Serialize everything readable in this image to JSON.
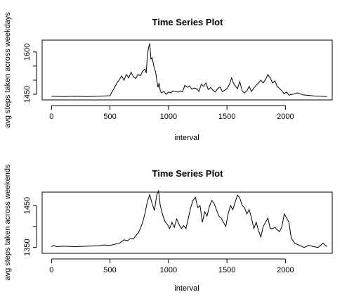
{
  "chart_data": [
    {
      "type": "line",
      "title": "Time Series Plot",
      "xlabel": "interval",
      "ylabel": "avg steps taken across weekdays",
      "xlim": [
        -80,
        2400
      ],
      "ylim": [
        1430,
        1642
      ],
      "xticks": [
        0,
        500,
        1000,
        1500,
        2000
      ],
      "yticks": [
        1450,
        1600
      ],
      "yminor": [
        1500,
        1550
      ],
      "line_color": "#000000",
      "x": [
        0,
        100,
        200,
        300,
        400,
        500,
        520,
        540,
        560,
        580,
        600,
        620,
        640,
        660,
        680,
        700,
        720,
        740,
        760,
        780,
        800,
        810,
        820,
        830,
        840,
        850,
        860,
        870,
        880,
        890,
        900,
        910,
        920,
        930,
        940,
        960,
        980,
        1000,
        1020,
        1040,
        1060,
        1080,
        1100,
        1120,
        1140,
        1160,
        1180,
        1200,
        1220,
        1240,
        1260,
        1280,
        1300,
        1320,
        1340,
        1360,
        1380,
        1400,
        1420,
        1440,
        1460,
        1480,
        1500,
        1520,
        1540,
        1555,
        1570,
        1590,
        1610,
        1630,
        1650,
        1670,
        1690,
        1710,
        1730,
        1750,
        1770,
        1790,
        1810,
        1830,
        1850,
        1870,
        1890,
        1910,
        1930,
        1950,
        1970,
        1990,
        2010,
        2030,
        2060,
        2100,
        2150,
        2200,
        2250,
        2300,
        2355
      ],
      "y": [
        1443,
        1442,
        1443,
        1442,
        1443,
        1445,
        1460,
        1475,
        1490,
        1502,
        1515,
        1500,
        1520,
        1508,
        1528,
        1512,
        1506,
        1520,
        1516,
        1532,
        1540,
        1525,
        1590,
        1615,
        1630,
        1575,
        1580,
        1560,
        1540,
        1530,
        1500,
        1475,
        1490,
        1462,
        1455,
        1460,
        1450,
        1458,
        1455,
        1462,
        1460,
        1458,
        1462,
        1458,
        1482,
        1475,
        1480,
        1468,
        1472,
        1470,
        1460,
        1485,
        1478,
        1490,
        1467,
        1474,
        1465,
        1458,
        1470,
        1476,
        1460,
        1464,
        1470,
        1484,
        1508,
        1490,
        1480,
        1470,
        1495,
        1462,
        1455,
        1462,
        1478,
        1460,
        1472,
        1482,
        1490,
        1500,
        1490,
        1503,
        1520,
        1508,
        1490,
        1497,
        1478,
        1470,
        1462,
        1452,
        1458,
        1447,
        1450,
        1455,
        1448,
        1446,
        1444,
        1443,
        1442
      ]
    },
    {
      "type": "line",
      "title": "Time Series Plot",
      "xlabel": "interval",
      "ylabel": "avg steps taken across weekends",
      "xlim": [
        -80,
        2400
      ],
      "ylim": [
        1336,
        1482
      ],
      "xticks": [
        0,
        500,
        1000,
        1500,
        2000
      ],
      "yticks": [
        1350,
        1450
      ],
      "yminor": [
        1400
      ],
      "line_color": "#000000",
      "x": [
        0,
        20,
        40,
        100,
        200,
        300,
        400,
        450,
        500,
        550,
        580,
        600,
        620,
        650,
        680,
        700,
        720,
        740,
        760,
        780,
        800,
        820,
        840,
        860,
        880,
        900,
        915,
        930,
        950,
        970,
        990,
        1010,
        1030,
        1050,
        1070,
        1090,
        1110,
        1130,
        1150,
        1170,
        1190,
        1210,
        1230,
        1250,
        1270,
        1290,
        1310,
        1330,
        1350,
        1370,
        1390,
        1410,
        1430,
        1450,
        1470,
        1490,
        1510,
        1530,
        1550,
        1570,
        1590,
        1610,
        1630,
        1650,
        1670,
        1690,
        1710,
        1730,
        1750,
        1770,
        1790,
        1810,
        1830,
        1850,
        1870,
        1890,
        1910,
        1930,
        1950,
        1970,
        1990,
        2010,
        2030,
        2050,
        2080,
        2120,
        2160,
        2200,
        2240,
        2280,
        2320,
        2355
      ],
      "y": [
        1352,
        1355,
        1352,
        1353,
        1352,
        1353,
        1354,
        1356,
        1355,
        1358,
        1360,
        1364,
        1368,
        1366,
        1372,
        1370,
        1378,
        1384,
        1395,
        1410,
        1432,
        1460,
        1476,
        1455,
        1438,
        1476,
        1485,
        1450,
        1428,
        1412,
        1405,
        1395,
        1410,
        1398,
        1418,
        1405,
        1395,
        1402,
        1395,
        1420,
        1445,
        1462,
        1470,
        1445,
        1450,
        1410,
        1435,
        1425,
        1448,
        1462,
        1455,
        1440,
        1425,
        1420,
        1410,
        1400,
        1430,
        1450,
        1440,
        1458,
        1475,
        1468,
        1450,
        1445,
        1430,
        1440,
        1420,
        1395,
        1410,
        1390,
        1375,
        1400,
        1410,
        1420,
        1395,
        1395,
        1398,
        1392,
        1388,
        1400,
        1430,
        1420,
        1410,
        1372,
        1360,
        1355,
        1350,
        1355,
        1352,
        1350,
        1360,
        1352
      ]
    }
  ]
}
